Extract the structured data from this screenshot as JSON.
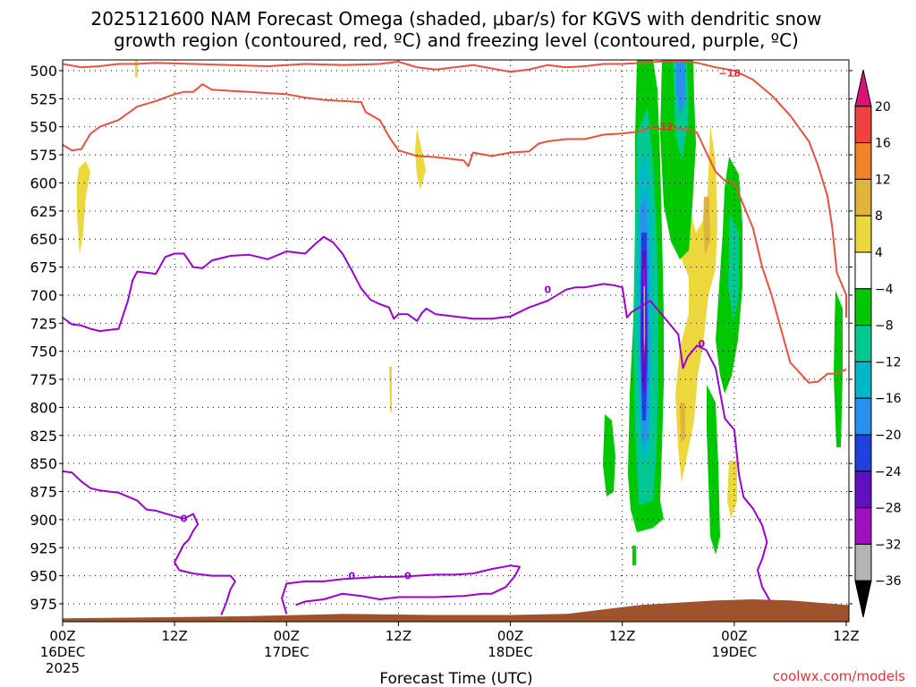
{
  "chart_data": {
    "type": "time-height",
    "title_line1": "2025121600 NAM Forecast Omega (shaded, μbar/s) for KGVS with dendritic snow",
    "title_line2": "growth region (contoured, red, ºC) and freezing level (contoured, purple, ºC)",
    "xlabel": "Forecast Time (UTC)",
    "credit": "coolwx.com/models",
    "xlim_hours": [
      0,
      84
    ],
    "ylim_hpa": [
      500,
      990
    ],
    "y_ticks": [
      500,
      525,
      550,
      575,
      600,
      625,
      650,
      675,
      700,
      725,
      750,
      775,
      800,
      825,
      850,
      875,
      900,
      925,
      950,
      975
    ],
    "x_ticks": [
      {
        "hour": 0,
        "label": "00Z",
        "sub": "16DEC",
        "sub2": "2025"
      },
      {
        "hour": 12,
        "label": "12Z",
        "sub": "",
        "sub2": ""
      },
      {
        "hour": 24,
        "label": "00Z",
        "sub": "17DEC",
        "sub2": ""
      },
      {
        "hour": 36,
        "label": "12Z",
        "sub": "",
        "sub2": ""
      },
      {
        "hour": 48,
        "label": "00Z",
        "sub": "18DEC",
        "sub2": ""
      },
      {
        "hour": 60,
        "label": "12Z",
        "sub": "",
        "sub2": ""
      },
      {
        "hour": 72,
        "label": "00Z",
        "sub": "19DEC",
        "sub2": ""
      },
      {
        "hour": 84,
        "label": "12Z",
        "sub": "",
        "sub2": ""
      }
    ],
    "colorbar": {
      "labels": [
        "20",
        "16",
        "12",
        "8",
        "4",
        "−4",
        "−8",
        "−12",
        "−16",
        "−20",
        "−24",
        "−28",
        "−32",
        "−36"
      ],
      "colors": [
        "#e0107a",
        "#f04040",
        "#f08428",
        "#e0b43c",
        "#ecd83c",
        "#ffffff",
        "#00c800",
        "#00c890",
        "#00b8c8",
        "#2890f0",
        "#2040e0",
        "#6010c0",
        "#a010c0",
        "#b4b4b4",
        "#000000"
      ]
    },
    "ground_color": "#a0522d",
    "ground_pressure": [
      [
        0,
        988
      ],
      [
        10,
        987
      ],
      [
        20,
        986
      ],
      [
        30,
        984
      ],
      [
        40,
        985
      ],
      [
        48,
        985
      ],
      [
        54,
        984
      ],
      [
        58,
        980
      ],
      [
        62,
        976
      ],
      [
        66,
        974
      ],
      [
        70,
        972
      ],
      [
        74,
        971
      ],
      [
        78,
        972
      ],
      [
        84,
        976
      ]
    ],
    "contour_labels": [
      {
        "text": "−18",
        "color": "#e03030",
        "hour": 71.5,
        "p": 502
      },
      {
        "text": "−12",
        "color": "#e03030",
        "hour": 64.3,
        "p": 550
      },
      {
        "text": "0",
        "color": "#9000d0",
        "hour": 52,
        "p": 695
      },
      {
        "text": "0",
        "color": "#9000d0",
        "hour": 68.5,
        "p": 743
      },
      {
        "text": "0",
        "color": "#9000d0",
        "hour": 13,
        "p": 899
      },
      {
        "text": "0",
        "color": "#9000d0",
        "hour": 37,
        "p": 950
      },
      {
        "text": "0",
        "color": "#9000d0",
        "hour": 31,
        "p": 950
      }
    ],
    "series": [
      {
        "name": "-18C dendritic (upper)",
        "color": "#e85040",
        "points": [
          [
            0,
            494
          ],
          [
            2,
            497
          ],
          [
            4,
            496
          ],
          [
            6,
            494
          ],
          [
            8,
            494
          ],
          [
            10,
            493
          ],
          [
            14,
            494
          ],
          [
            18,
            495
          ],
          [
            22,
            496
          ],
          [
            26,
            494
          ],
          [
            30,
            495
          ],
          [
            34,
            494
          ],
          [
            36,
            492
          ],
          [
            38,
            497
          ],
          [
            40,
            499
          ],
          [
            44,
            495
          ],
          [
            46,
            498
          ],
          [
            48,
            501
          ],
          [
            50,
            499
          ],
          [
            52,
            495
          ],
          [
            54,
            497
          ],
          [
            56,
            496
          ],
          [
            58,
            494
          ],
          [
            60,
            494
          ],
          [
            62,
            493
          ],
          [
            66,
            491
          ],
          [
            68,
            493
          ],
          [
            70,
            497
          ],
          [
            72,
            500
          ],
          [
            74,
            508
          ],
          [
            76,
            522
          ],
          [
            78,
            540
          ],
          [
            80,
            563
          ],
          [
            81,
            585
          ],
          [
            82,
            612
          ],
          [
            82.5,
            640
          ],
          [
            83,
            680
          ],
          [
            84,
            700
          ],
          [
            84,
            720
          ]
        ]
      },
      {
        "name": "-12C dendritic (lower)",
        "color": "#e85040",
        "points": [
          [
            0,
            566
          ],
          [
            1,
            571
          ],
          [
            2,
            570
          ],
          [
            3,
            556
          ],
          [
            4,
            550
          ],
          [
            6,
            544
          ],
          [
            8,
            532
          ],
          [
            10,
            527
          ],
          [
            12,
            521
          ],
          [
            13,
            519
          ],
          [
            14,
            519
          ],
          [
            15,
            512
          ],
          [
            16,
            517
          ],
          [
            18,
            518
          ],
          [
            20,
            519
          ],
          [
            22,
            520
          ],
          [
            24,
            521
          ],
          [
            26,
            524
          ],
          [
            28,
            526
          ],
          [
            30,
            527
          ],
          [
            32,
            528
          ],
          [
            32.5,
            537
          ],
          [
            34,
            544
          ],
          [
            35,
            559
          ],
          [
            36,
            571
          ],
          [
            38,
            576
          ],
          [
            40,
            577
          ],
          [
            42,
            579
          ],
          [
            43,
            580
          ],
          [
            43.5,
            585
          ],
          [
            44,
            573
          ],
          [
            46,
            576
          ],
          [
            48,
            573
          ],
          [
            50,
            572
          ],
          [
            51,
            565
          ],
          [
            52,
            563
          ],
          [
            54,
            561
          ],
          [
            56,
            561
          ],
          [
            58,
            557
          ],
          [
            60,
            556
          ],
          [
            62,
            554
          ],
          [
            63,
            550
          ],
          [
            64,
            552
          ],
          [
            66,
            551
          ],
          [
            68,
            555
          ],
          [
            69,
            573
          ],
          [
            70,
            590
          ],
          [
            71,
            598
          ],
          [
            72,
            600
          ],
          [
            73,
            620
          ],
          [
            74,
            640
          ],
          [
            75,
            675
          ],
          [
            76,
            700
          ],
          [
            77,
            730
          ],
          [
            78,
            760
          ],
          [
            80,
            778
          ],
          [
            81,
            777
          ],
          [
            82,
            770
          ],
          [
            83,
            770
          ],
          [
            84,
            766
          ]
        ]
      },
      {
        "name": "0C freezing level (main)",
        "color": "#9a00d0",
        "points": [
          [
            0,
            720
          ],
          [
            1,
            726
          ],
          [
            2,
            727
          ],
          [
            3,
            730
          ],
          [
            4,
            732
          ],
          [
            6,
            730
          ],
          [
            7,
            705
          ],
          [
            7.5,
            687
          ],
          [
            8,
            679
          ],
          [
            10,
            681
          ],
          [
            11,
            666
          ],
          [
            12,
            663
          ],
          [
            13,
            663
          ],
          [
            14,
            675
          ],
          [
            15,
            676
          ],
          [
            16,
            669
          ],
          [
            18,
            665
          ],
          [
            20,
            664
          ],
          [
            22,
            668
          ],
          [
            24,
            661
          ],
          [
            25,
            662
          ],
          [
            26,
            663
          ],
          [
            27,
            655
          ],
          [
            28,
            648
          ],
          [
            29,
            653
          ],
          [
            30,
            663
          ],
          [
            31,
            678
          ],
          [
            32,
            694
          ],
          [
            33,
            704
          ],
          [
            34,
            708
          ],
          [
            35,
            711
          ],
          [
            35.5,
            721
          ],
          [
            36,
            717
          ],
          [
            37,
            717
          ],
          [
            38,
            723
          ],
          [
            38.5,
            716
          ],
          [
            39,
            712
          ],
          [
            40,
            717
          ],
          [
            42,
            719
          ],
          [
            44,
            721
          ],
          [
            46,
            721
          ],
          [
            48,
            719
          ],
          [
            50,
            711
          ],
          [
            52,
            705
          ],
          [
            54,
            695
          ],
          [
            55,
            693
          ],
          [
            56,
            693
          ],
          [
            58,
            690
          ],
          [
            59,
            691
          ],
          [
            60,
            693
          ],
          [
            60.5,
            720
          ],
          [
            61,
            715
          ],
          [
            62,
            710
          ],
          [
            63,
            705
          ],
          [
            64,
            715
          ],
          [
            65,
            725
          ],
          [
            66,
            735
          ],
          [
            66.5,
            765
          ],
          [
            67,
            755
          ],
          [
            68,
            745
          ],
          [
            69,
            749
          ],
          [
            70,
            765
          ],
          [
            71,
            810
          ],
          [
            72,
            820
          ],
          [
            72.5,
            860
          ],
          [
            73,
            880
          ],
          [
            74,
            890
          ],
          [
            75,
            905
          ],
          [
            75.5,
            920
          ],
          [
            75,
            935
          ],
          [
            74.5,
            945
          ],
          [
            75,
            960
          ],
          [
            76,
            975
          ],
          [
            77,
            985
          ]
        ]
      },
      {
        "name": "0C near surface (upper loop)",
        "color": "#9a00d0",
        "points": [
          [
            0,
            857
          ],
          [
            1,
            858
          ],
          [
            2,
            866
          ],
          [
            3,
            872
          ],
          [
            4,
            874
          ],
          [
            6,
            876
          ],
          [
            8,
            883
          ],
          [
            9,
            891
          ],
          [
            10,
            892
          ],
          [
            12,
            897
          ],
          [
            13,
            899
          ],
          [
            14,
            895
          ],
          [
            14.5,
            904
          ],
          [
            14,
            910
          ],
          [
            13.5,
            918
          ],
          [
            13,
            922
          ],
          [
            12.5,
            930
          ],
          [
            12,
            938
          ],
          [
            12.5,
            945
          ],
          [
            14,
            948
          ],
          [
            16,
            950
          ],
          [
            18,
            950
          ],
          [
            18.5,
            955
          ],
          [
            18,
            962
          ],
          [
            17.5,
            975
          ],
          [
            17,
            985
          ]
        ]
      },
      {
        "name": "0C near surface (lower loop)",
        "color": "#9a00d0",
        "points": [
          [
            24,
            984
          ],
          [
            23.5,
            970
          ],
          [
            24,
            957
          ],
          [
            26,
            955
          ],
          [
            28,
            955
          ],
          [
            30,
            953
          ],
          [
            32,
            952
          ],
          [
            34,
            951
          ],
          [
            36,
            951
          ],
          [
            38,
            950
          ],
          [
            40,
            949
          ],
          [
            42,
            949
          ],
          [
            44,
            948
          ],
          [
            46,
            944
          ],
          [
            48,
            941
          ],
          [
            49,
            942
          ],
          [
            48.5,
            950
          ],
          [
            47.5,
            960
          ],
          [
            46,
            966
          ],
          [
            45,
            966
          ],
          [
            43,
            968
          ],
          [
            40,
            969
          ],
          [
            36,
            969
          ],
          [
            34,
            971
          ],
          [
            32,
            968
          ],
          [
            30,
            966
          ],
          [
            28,
            971
          ],
          [
            26,
            973
          ],
          [
            25,
            976
          ]
        ]
      }
    ]
  }
}
